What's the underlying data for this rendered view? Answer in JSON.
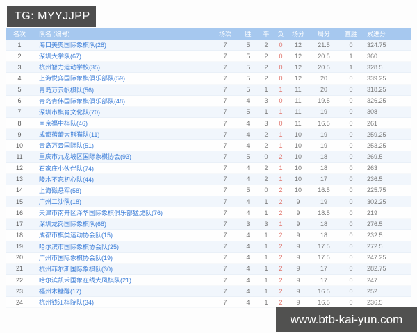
{
  "overlay": {
    "tg_label": "TG: MYYJJPP"
  },
  "watermark": {
    "text": "www.btb-kai-yun.com"
  },
  "colors": {
    "header_bg": "#a6c8ef",
    "team_link": "#3b7dd8",
    "loss_red": "#e0746c",
    "overlay_bg": "#444443"
  },
  "table": {
    "columns": [
      "名次",
      "队名 (编号)",
      "场次",
      "胜",
      "平",
      "负",
      "场分",
      "局分",
      "直胜",
      "累进分"
    ],
    "rows": [
      {
        "rank": "1",
        "name": "海口美奥国际象棋队(28)",
        "played": "7",
        "win": "5",
        "draw": "2",
        "loss": "0",
        "match_points": "12",
        "game_points": "21.5",
        "direct_win": "0",
        "progressive": "324.75"
      },
      {
        "rank": "2",
        "name": "深圳大学队(67)",
        "played": "7",
        "win": "5",
        "draw": "2",
        "loss": "0",
        "match_points": "12",
        "game_points": "20.5",
        "direct_win": "1",
        "progressive": "360"
      },
      {
        "rank": "3",
        "name": "杭州智力运动学校(35)",
        "played": "7",
        "win": "5",
        "draw": "2",
        "loss": "0",
        "match_points": "12",
        "game_points": "20.5",
        "direct_win": "1",
        "progressive": "328.5"
      },
      {
        "rank": "4",
        "name": "上海悦弈国际象棋俱乐部队(59)",
        "played": "7",
        "win": "5",
        "draw": "2",
        "loss": "0",
        "match_points": "12",
        "game_points": "20",
        "direct_win": "0",
        "progressive": "339.25"
      },
      {
        "rank": "5",
        "name": "青岛万云帆棋队(56)",
        "played": "7",
        "win": "5",
        "draw": "1",
        "loss": "1",
        "match_points": "11",
        "game_points": "20",
        "direct_win": "0",
        "progressive": "318.25"
      },
      {
        "rank": "6",
        "name": "青岛青伟国际象棋俱乐部队(48)",
        "played": "7",
        "win": "4",
        "draw": "3",
        "loss": "0",
        "match_points": "11",
        "game_points": "19.5",
        "direct_win": "0",
        "progressive": "326.25"
      },
      {
        "rank": "7",
        "name": "深圳市棋育文化队(70)",
        "played": "7",
        "win": "5",
        "draw": "1",
        "loss": "1",
        "match_points": "11",
        "game_points": "19",
        "direct_win": "0",
        "progressive": "308"
      },
      {
        "rank": "8",
        "name": "南京福中棋队(46)",
        "played": "7",
        "win": "4",
        "draw": "3",
        "loss": "0",
        "match_points": "11",
        "game_points": "16.5",
        "direct_win": "0",
        "progressive": "261"
      },
      {
        "rank": "9",
        "name": "成都蓓蕾大熊猫队(11)",
        "played": "7",
        "win": "4",
        "draw": "2",
        "loss": "1",
        "match_points": "10",
        "game_points": "19",
        "direct_win": "0",
        "progressive": "259.25"
      },
      {
        "rank": "10",
        "name": "青岛万云国际队(51)",
        "played": "7",
        "win": "4",
        "draw": "2",
        "loss": "1",
        "match_points": "10",
        "game_points": "19",
        "direct_win": "0",
        "progressive": "253.25"
      },
      {
        "rank": "11",
        "name": "重庆市九龙坡区国际象棋协会(93)",
        "played": "7",
        "win": "5",
        "draw": "0",
        "loss": "2",
        "match_points": "10",
        "game_points": "18",
        "direct_win": "0",
        "progressive": "269.5"
      },
      {
        "rank": "12",
        "name": "石家庄小伙伴队(74)",
        "played": "7",
        "win": "4",
        "draw": "2",
        "loss": "1",
        "match_points": "10",
        "game_points": "18",
        "direct_win": "0",
        "progressive": "263"
      },
      {
        "rank": "13",
        "name": "陵水不忘初心队(44)",
        "played": "7",
        "win": "4",
        "draw": "2",
        "loss": "1",
        "match_points": "10",
        "game_points": "17",
        "direct_win": "0",
        "progressive": "236.5"
      },
      {
        "rank": "14",
        "name": "上海磁悬军(58)",
        "played": "7",
        "win": "5",
        "draw": "0",
        "loss": "2",
        "match_points": "10",
        "game_points": "16.5",
        "direct_win": "0",
        "progressive": "225.75"
      },
      {
        "rank": "15",
        "name": "广州二沙队(18)",
        "played": "7",
        "win": "4",
        "draw": "1",
        "loss": "2",
        "match_points": "9",
        "game_points": "19",
        "direct_win": "0",
        "progressive": "302.25"
      },
      {
        "rank": "16",
        "name": "天津市南开区泽华国际象棋俱乐部猛虎队(76)",
        "played": "7",
        "win": "4",
        "draw": "1",
        "loss": "2",
        "match_points": "9",
        "game_points": "18.5",
        "direct_win": "0",
        "progressive": "219"
      },
      {
        "rank": "17",
        "name": "深圳龙岗国际象棋队(68)",
        "played": "7",
        "win": "3",
        "draw": "3",
        "loss": "1",
        "match_points": "9",
        "game_points": "18",
        "direct_win": "0",
        "progressive": "276.5"
      },
      {
        "rank": "18",
        "name": "成都市棋类运动协会队(15)",
        "played": "7",
        "win": "4",
        "draw": "1",
        "loss": "2",
        "match_points": "9",
        "game_points": "18",
        "direct_win": "0",
        "progressive": "232.5"
      },
      {
        "rank": "19",
        "name": "哈尔滨市国际象棋协会队(25)",
        "played": "7",
        "win": "4",
        "draw": "1",
        "loss": "2",
        "match_points": "9",
        "game_points": "17.5",
        "direct_win": "0",
        "progressive": "272.5"
      },
      {
        "rank": "20",
        "name": "广州市国际象棋协会队(19)",
        "played": "7",
        "win": "4",
        "draw": "1",
        "loss": "2",
        "match_points": "9",
        "game_points": "17.5",
        "direct_win": "0",
        "progressive": "247.25"
      },
      {
        "rank": "21",
        "name": "杭州菲尔斯国际象棋队(30)",
        "played": "7",
        "win": "4",
        "draw": "1",
        "loss": "2",
        "match_points": "9",
        "game_points": "17",
        "direct_win": "0",
        "progressive": "282.75"
      },
      {
        "rank": "22",
        "name": "哈尔滨凯禾国象在线大凤棋队(21)",
        "played": "7",
        "win": "4",
        "draw": "1",
        "loss": "2",
        "match_points": "9",
        "game_points": "17",
        "direct_win": "0",
        "progressive": "247"
      },
      {
        "rank": "23",
        "name": "福州木糖醇(17)",
        "played": "7",
        "win": "4",
        "draw": "1",
        "loss": "2",
        "match_points": "9",
        "game_points": "16.5",
        "direct_win": "0",
        "progressive": "252"
      },
      {
        "rank": "24",
        "name": "杭州钱江棋院队(34)",
        "played": "7",
        "win": "4",
        "draw": "1",
        "loss": "2",
        "match_points": "9",
        "game_points": "16.5",
        "direct_win": "0",
        "progressive": "236.5"
      }
    ]
  }
}
